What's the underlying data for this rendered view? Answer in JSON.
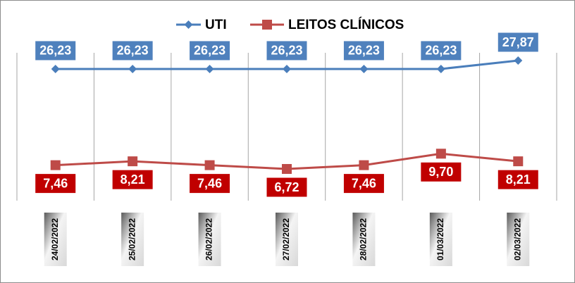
{
  "chart_data": {
    "type": "line",
    "categories": [
      "24/02/2022",
      "25/02/2022",
      "26/02/2022",
      "27/02/2022",
      "28/02/2022",
      "01/03/2022",
      "02/03/2022"
    ],
    "series": [
      {
        "name": "UTI",
        "color": "#4a7ebb",
        "values": [
          26.23,
          26.23,
          26.23,
          26.23,
          26.23,
          26.23,
          27.87
        ],
        "value_labels": [
          "26,23",
          "26,23",
          "26,23",
          "26,23",
          "26,23",
          "26,23",
          "27,87"
        ]
      },
      {
        "name": "LEITOS CLÍNICOS",
        "color": "#be4b48",
        "values": [
          7.46,
          8.21,
          7.46,
          6.72,
          7.46,
          9.7,
          8.21
        ],
        "value_labels": [
          "7,46",
          "8,21",
          "7,46",
          "6,72",
          "7,46",
          "9,70",
          "8,21"
        ]
      }
    ]
  }
}
